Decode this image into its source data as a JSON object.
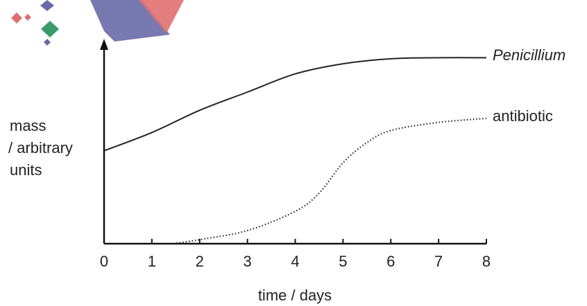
{
  "chart_data": {
    "type": "line",
    "x_label": "time / days",
    "y_label": [
      "mass",
      "/ arbitrary",
      "units"
    ],
    "xlim": [
      0,
      8
    ],
    "xticks": [
      0,
      1,
      2,
      3,
      4,
      5,
      6,
      7,
      8
    ],
    "ylim": [
      0,
      10
    ],
    "series": [
      {
        "name": "Penicillium",
        "color": "#222222",
        "style": "solid",
        "italic": true,
        "x": [
          0,
          1,
          2,
          3,
          4,
          5,
          6,
          7,
          8
        ],
        "values": [
          4.6,
          5.5,
          6.6,
          7.5,
          8.4,
          8.9,
          9.15,
          9.2,
          9.2
        ]
      },
      {
        "name": "antibiotic",
        "color": "#222222",
        "style": "dotted",
        "italic": false,
        "x": [
          1.45,
          2,
          3,
          4,
          4.5,
          5,
          5.5,
          6,
          7,
          8
        ],
        "values": [
          0,
          0.2,
          0.65,
          1.6,
          2.5,
          4.0,
          5.0,
          5.6,
          6.0,
          6.2
        ]
      }
    ]
  }
}
